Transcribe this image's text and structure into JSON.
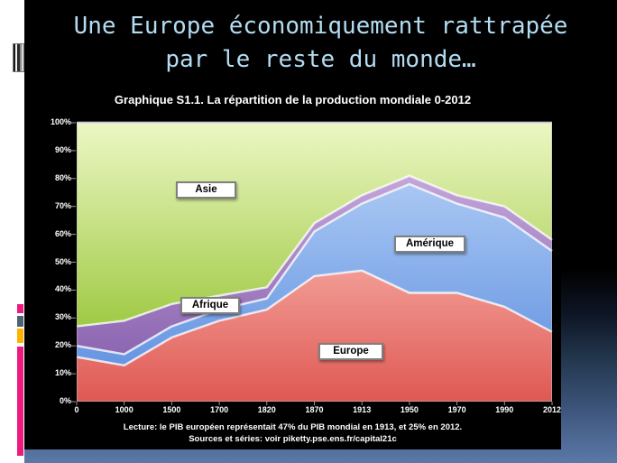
{
  "slide": {
    "title_line1": "Une Europe économiquement rattrapée",
    "title_line2": "par le reste du monde…",
    "title_color": "#b3dcf2"
  },
  "chart": {
    "title": "Graphique S1.1. La répartition de la production mondiale 0-2012",
    "note_line1": "Lecture: le PIB européen représentait 47% du PIB mondial en 1913, et 25% en 2012.",
    "note_line2": "Sources et séries: voir piketty.pse.ens.fr/capital21c"
  },
  "chart_data": {
    "type": "area",
    "stacked": true,
    "title": "Graphique S1.1. La répartition de la production mondiale 0-2012",
    "x_labels": [
      "0",
      "1000",
      "1500",
      "1700",
      "1820",
      "1870",
      "1913",
      "1950",
      "1970",
      "1990",
      "2012"
    ],
    "y_ticks": [
      "0%",
      "10%",
      "20%",
      "30%",
      "40%",
      "50%",
      "60%",
      "70%",
      "80%",
      "90%",
      "100%"
    ],
    "ylim": [
      0,
      100
    ],
    "grid": false,
    "legend_position": "inline-labels",
    "series": [
      {
        "name": "Europe",
        "label": "Europe",
        "values": [
          16,
          13,
          23,
          29,
          33,
          45,
          47,
          39,
          39,
          34,
          25
        ],
        "color_top": "#f19b94",
        "color_bottom": "#e05853"
      },
      {
        "name": "Amérique",
        "label": "Amérique",
        "values": [
          4,
          4,
          4,
          4,
          4,
          16,
          24,
          39,
          32,
          32,
          29
        ],
        "color_top": "#a9c7f3",
        "color_bottom": "#6695e2"
      },
      {
        "name": "Afrique",
        "label": "Afrique",
        "values": [
          7,
          12,
          8,
          5,
          4,
          3,
          3,
          3,
          3,
          4,
          4
        ],
        "color_top": "#c3a6da",
        "color_bottom": "#8c66b2"
      },
      {
        "name": "Asie",
        "label": "Asie",
        "values": [
          73,
          71,
          65,
          62,
          59,
          36,
          26,
          19,
          26,
          30,
          42
        ],
        "color_top": "#ecf7c4",
        "color_bottom": "#a0ca45"
      }
    ]
  },
  "sidebar": {
    "stripe_icon": "barcode-stripes-icon",
    "marks": [
      {
        "name": "pink-square",
        "color": "#ec1a7c"
      },
      {
        "name": "slate-square",
        "color": "#50616f"
      },
      {
        "name": "orange-square",
        "color": "#ffb200"
      },
      {
        "name": "magenta-bar",
        "color": "#ec1a7c"
      }
    ]
  }
}
